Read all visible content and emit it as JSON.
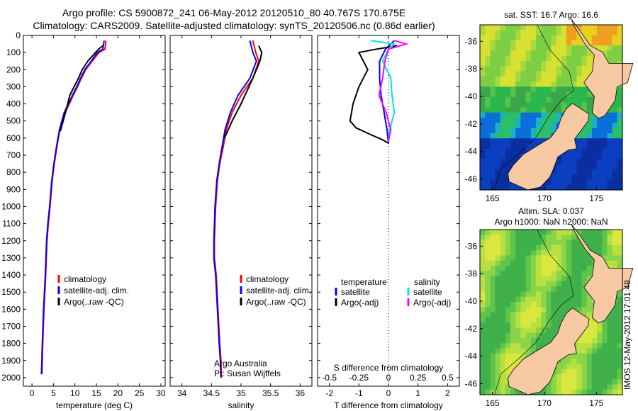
{
  "header": {
    "line1": "Argo profile: CS 5900872_241 06-May-2012 20120510_80 40.767S 170.675E",
    "line2": "Climatology: CARS2009. Satellite-adjusted climatology: synTS_20120506.nc (0.86d earlier)"
  },
  "footer_stamp": "IMOS 12-May-2012 17:01:48",
  "colors": {
    "climatology": "#ff0000",
    "satellite": "#0000ff",
    "argo": "#000000",
    "salinity_satellite": "#00e5e5",
    "salinity_argo": "#ff00ff"
  },
  "chart_data": [
    {
      "type": "line",
      "xlabel": "temperature (deg C)",
      "ylabel": "",
      "xlim": [
        -2,
        31
      ],
      "ylim": [
        2050,
        0
      ],
      "xticks": [
        0,
        5,
        10,
        15,
        20,
        25,
        30
      ],
      "yticks": [
        0,
        100,
        200,
        300,
        400,
        500,
        600,
        700,
        800,
        900,
        1000,
        1100,
        1200,
        1300,
        1400,
        1500,
        1600,
        1700,
        1800,
        1900,
        2000
      ],
      "legend": [
        "climatology",
        "satellite-adj. clim.",
        "Argo(..raw -QC)"
      ],
      "legend_position": "lower-right",
      "series": [
        {
          "name": "climatology",
          "color": "#ff0000",
          "x": [
            17.2,
            17.0,
            15.6,
            14.0,
            12.5,
            11.5,
            10.6,
            9.6,
            8.7,
            7.7,
            6.5,
            5.8,
            5.2,
            4.7,
            4.2,
            3.8,
            3.5,
            3.2,
            2.8,
            2.5,
            2.3
          ],
          "y": [
            30,
            80,
            100,
            150,
            200,
            250,
            300,
            350,
            400,
            450,
            550,
            650,
            750,
            850,
            1000,
            1100,
            1200,
            1400,
            1600,
            1800,
            1980
          ]
        },
        {
          "name": "satellite-adj. clim.",
          "color": "#0000ff",
          "x": [
            16.8,
            16.5,
            15.2,
            13.8,
            12.3,
            11.3,
            10.4,
            9.4,
            8.5,
            7.5,
            6.4,
            5.7,
            5.1,
            4.6,
            4.1,
            3.7,
            3.4,
            3.1,
            2.7,
            2.4,
            2.2
          ],
          "y": [
            30,
            80,
            100,
            150,
            200,
            250,
            300,
            350,
            400,
            450,
            550,
            650,
            750,
            850,
            1000,
            1100,
            1200,
            1400,
            1600,
            1800,
            1980
          ]
        },
        {
          "name": "Argo(..raw -QC)",
          "color": "#000000",
          "x": [
            16.5,
            16.0,
            15.5,
            14.8,
            13.0,
            11.7,
            10.8,
            9.8,
            8.8,
            7.8,
            6.6
          ],
          "y": [
            60,
            70,
            80,
            100,
            150,
            200,
            250,
            300,
            350,
            450,
            560
          ]
        }
      ]
    },
    {
      "type": "line",
      "xlabel": "salinity",
      "ylabel": "",
      "xlim": [
        33.8,
        36.2
      ],
      "ylim": [
        2050,
        0
      ],
      "xticks": [
        34,
        34.5,
        35,
        35.5,
        36
      ],
      "annotation": [
        "Argo Australia",
        "PI: Susan Wijffels"
      ],
      "legend": [
        "climatology",
        "satellite-adj. clim.",
        "Argo(..raw -QC)"
      ],
      "legend_position": "lower-right",
      "series": [
        {
          "name": "climatology",
          "color": "#ff0000",
          "x": [
            35.2,
            35.25,
            35.3,
            35.2,
            35.0,
            34.85,
            34.75,
            34.7,
            34.64,
            34.6,
            34.57,
            34.56,
            34.55,
            34.55,
            34.58,
            34.61,
            34.64,
            34.66,
            34.67
          ],
          "y": [
            30,
            100,
            150,
            250,
            350,
            450,
            550,
            650,
            750,
            850,
            1000,
            1100,
            1200,
            1300,
            1400,
            1600,
            1800,
            1900,
            2000
          ]
        },
        {
          "name": "satellite-adj. clim.",
          "color": "#0000ff",
          "x": [
            35.15,
            35.2,
            35.26,
            35.15,
            34.95,
            34.82,
            34.73,
            34.68,
            34.63,
            34.59,
            34.56,
            34.55,
            34.54,
            34.54,
            34.57,
            34.6,
            34.63,
            34.65,
            34.66
          ],
          "y": [
            30,
            100,
            150,
            250,
            350,
            450,
            550,
            650,
            750,
            850,
            1000,
            1100,
            1200,
            1300,
            1400,
            1600,
            1800,
            1900,
            2000
          ]
        },
        {
          "name": "Argo(..raw -QC)",
          "color": "#000000",
          "x": [
            35.3,
            35.35,
            35.32,
            35.2,
            35.0,
            34.85,
            34.72
          ],
          "y": [
            60,
            100,
            150,
            250,
            400,
            500,
            600
          ]
        }
      ]
    },
    {
      "type": "line",
      "xlabel": "T difference from climatology",
      "x2label": "S difference from climatology",
      "xlim": [
        -2.4,
        2.4
      ],
      "ylim": [
        2050,
        0
      ],
      "xticks": [
        -2,
        -1,
        0,
        1,
        2
      ],
      "x2ticks": [
        -0.5,
        -0.25,
        0,
        0.25,
        0.5
      ],
      "x2tick_labels": [
        "-0.5",
        "-0.25",
        "0",
        "0.25",
        "0.5"
      ],
      "legend_headers": [
        "temperature",
        "salinity"
      ],
      "legend": [
        "satellite",
        "Argo(-adj)",
        "satellite",
        "Argo(-adj)"
      ],
      "legend_position": "lower-center",
      "series": [
        {
          "name": "satellite",
          "color": "#0000ff",
          "x": [
            0.2,
            -0.1,
            -0.3,
            -0.3,
            -0.25,
            -0.15,
            -0.05,
            0
          ],
          "y": [
            30,
            80,
            150,
            250,
            350,
            450,
            550,
            630
          ]
        },
        {
          "name": "Argo(-adj)",
          "color": "#000000",
          "x": [
            0.3,
            -0.4,
            -1.0,
            -0.7,
            -1.0,
            -1.2,
            -1.3,
            -1.1,
            -0.6,
            -0.2,
            0
          ],
          "y": [
            60,
            80,
            100,
            200,
            300,
            400,
            500,
            540,
            580,
            610,
            630
          ]
        },
        {
          "name": "satellite",
          "color": "#00e5e5",
          "x": [
            -0.15,
            0.05,
            0.0,
            -0.05,
            0.02,
            0.03,
            0.05,
            0.01,
            0
          ],
          "y": [
            30,
            50,
            80,
            150,
            250,
            350,
            450,
            550,
            620
          ]
        },
        {
          "name": "Argo(-adj)",
          "color": "#ff00ff",
          "x": [
            0.05,
            0.15,
            0.0,
            -0.03,
            -0.05,
            -0.08,
            -0.02,
            0.02,
            0
          ],
          "y": [
            30,
            50,
            80,
            150,
            250,
            350,
            450,
            550,
            620
          ]
        }
      ]
    },
    {
      "type": "heatmap",
      "title": "sat. SST: 16.7 Argo: 16.6",
      "xlim": [
        163.8,
        177.5
      ],
      "ylim": [
        -46.8,
        -34.8
      ],
      "xticks": [
        165,
        170,
        175
      ],
      "yticks": [
        -36,
        -38,
        -40,
        -42,
        -44,
        -46
      ]
    },
    {
      "type": "heatmap",
      "title": "Altim. SLA: 0.037",
      "subtitle": "Argo h1000: NaN h2000: NaN",
      "xlim": [
        163.8,
        177.5
      ],
      "ylim": [
        -46.8,
        -34.8
      ],
      "xticks": [
        165,
        170,
        175
      ],
      "yticks": [
        -36,
        -38,
        -40,
        -42,
        -44,
        -46
      ]
    }
  ]
}
